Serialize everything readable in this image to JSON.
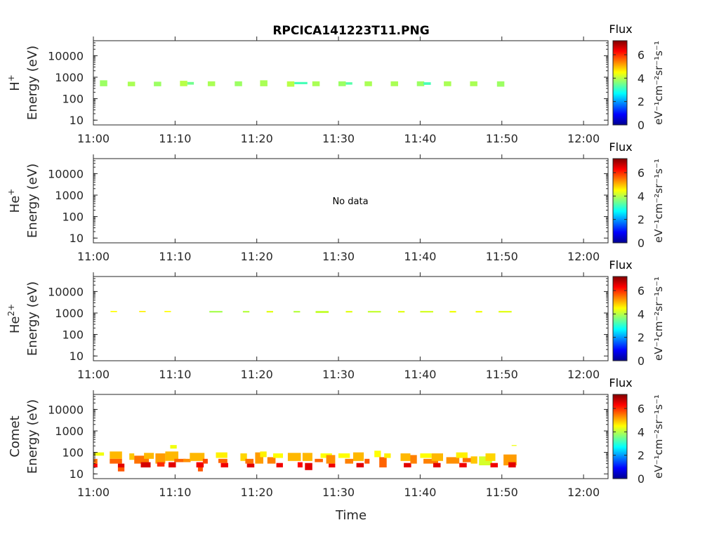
{
  "title": "RPCICA141223T11.PNG",
  "xlabel": "Time",
  "colorbar": {
    "label": "Flux",
    "unit_label": "eV⁻¹cm⁻²sr⁻¹s⁻¹",
    "ticks": [
      "0",
      "2",
      "4",
      "6"
    ],
    "range": [
      0,
      7.2
    ],
    "colormap": "jet"
  },
  "chart_data": [
    {
      "type": "heatmap",
      "species": "H",
      "species_sup": "+",
      "ylabel": "Energy (eV)",
      "y_scale": "log",
      "ylim": [
        6,
        50000
      ],
      "xlim": [
        "11:00",
        "12:03"
      ],
      "x_ticks": [
        "11:00",
        "11:10",
        "11:20",
        "11:30",
        "11:40",
        "11:50",
        "12:00"
      ],
      "y_ticks": [
        "10",
        "100",
        "1000",
        "10000"
      ],
      "note": "",
      "cells": [
        {
          "t": "11:00.8",
          "dt": 0.9,
          "e_lo": 380,
          "e_hi": 720,
          "flux": 3.8
        },
        {
          "t": "11:04.2",
          "dt": 0.9,
          "e_lo": 380,
          "e_hi": 620,
          "flux": 3.9
        },
        {
          "t": "11:07.4",
          "dt": 0.9,
          "e_lo": 380,
          "e_hi": 620,
          "flux": 3.8
        },
        {
          "t": "11:10.6",
          "dt": 0.9,
          "e_lo": 380,
          "e_hi": 680,
          "flux": 4.0
        },
        {
          "t": "11:11.5",
          "dt": 0.8,
          "e_lo": 450,
          "e_hi": 600,
          "flux": 3.5
        },
        {
          "t": "11:14.0",
          "dt": 0.9,
          "e_lo": 380,
          "e_hi": 640,
          "flux": 3.9
        },
        {
          "t": "11:17.3",
          "dt": 0.9,
          "e_lo": 380,
          "e_hi": 640,
          "flux": 3.8
        },
        {
          "t": "11:20.4",
          "dt": 0.9,
          "e_lo": 380,
          "e_hi": 720,
          "flux": 3.9
        },
        {
          "t": "11:23.7",
          "dt": 0.9,
          "e_lo": 360,
          "e_hi": 640,
          "flux": 4.0
        },
        {
          "t": "11:24.6",
          "dt": 1.6,
          "e_lo": 470,
          "e_hi": 600,
          "flux": 3.2
        },
        {
          "t": "11:26.8",
          "dt": 0.9,
          "e_lo": 380,
          "e_hi": 640,
          "flux": 3.9
        },
        {
          "t": "11:30.0",
          "dt": 0.9,
          "e_lo": 380,
          "e_hi": 640,
          "flux": 3.8
        },
        {
          "t": "11:30.9",
          "dt": 0.8,
          "e_lo": 450,
          "e_hi": 580,
          "flux": 3.3
        },
        {
          "t": "11:33.2",
          "dt": 0.9,
          "e_lo": 380,
          "e_hi": 640,
          "flux": 3.9
        },
        {
          "t": "11:36.4",
          "dt": 0.9,
          "e_lo": 380,
          "e_hi": 640,
          "flux": 3.9
        },
        {
          "t": "11:39.6",
          "dt": 0.9,
          "e_lo": 380,
          "e_hi": 640,
          "flux": 3.8
        },
        {
          "t": "11:40.4",
          "dt": 0.9,
          "e_lo": 440,
          "e_hi": 580,
          "flux": 3.2
        },
        {
          "t": "11:42.9",
          "dt": 0.9,
          "e_lo": 380,
          "e_hi": 640,
          "flux": 3.9
        },
        {
          "t": "11:46.1",
          "dt": 0.9,
          "e_lo": 380,
          "e_hi": 640,
          "flux": 3.9
        },
        {
          "t": "11:49.4",
          "dt": 0.9,
          "e_lo": 360,
          "e_hi": 640,
          "flux": 3.8
        }
      ]
    },
    {
      "type": "heatmap",
      "species": "He",
      "species_sup": "+",
      "ylabel": "Energy (eV)",
      "y_scale": "log",
      "ylim": [
        6,
        50000
      ],
      "xlim": [
        "11:00",
        "12:03"
      ],
      "x_ticks": [
        "11:00",
        "11:10",
        "11:20",
        "11:30",
        "11:40",
        "11:50",
        "12:00"
      ],
      "y_ticks": [
        "10",
        "100",
        "1000",
        "10000"
      ],
      "note": "No data",
      "cells": []
    },
    {
      "type": "heatmap",
      "species": "He",
      "species_sup": "2+",
      "ylabel": "Energy (eV)",
      "y_scale": "log",
      "ylim": [
        6,
        50000
      ],
      "xlim": [
        "11:00",
        "12:03"
      ],
      "x_ticks": [
        "11:00",
        "11:10",
        "11:20",
        "11:30",
        "11:40",
        "11:50",
        "12:00"
      ],
      "y_ticks": [
        "10",
        "100",
        "1000",
        "10000"
      ],
      "note": "",
      "cells": [
        {
          "t": "11:02.1",
          "dt": 0.8,
          "e_lo": 1100,
          "e_hi": 1250,
          "flux": 4.5
        },
        {
          "t": "11:05.6",
          "dt": 0.8,
          "e_lo": 1100,
          "e_hi": 1250,
          "flux": 4.6
        },
        {
          "t": "11:08.7",
          "dt": 0.8,
          "e_lo": 1100,
          "e_hi": 1250,
          "flux": 4.5
        },
        {
          "t": "11:14.2",
          "dt": 1.6,
          "e_lo": 1050,
          "e_hi": 1250,
          "flux": 3.9
        },
        {
          "t": "11:18.3",
          "dt": 0.8,
          "e_lo": 1050,
          "e_hi": 1250,
          "flux": 4.0
        },
        {
          "t": "11:21.2",
          "dt": 0.8,
          "e_lo": 1050,
          "e_hi": 1250,
          "flux": 4.3
        },
        {
          "t": "11:24.5",
          "dt": 0.8,
          "e_lo": 1050,
          "e_hi": 1250,
          "flux": 4.0
        },
        {
          "t": "11:27.2",
          "dt": 1.6,
          "e_lo": 1000,
          "e_hi": 1250,
          "flux": 4.1
        },
        {
          "t": "11:30.9",
          "dt": 0.8,
          "e_lo": 1050,
          "e_hi": 1250,
          "flux": 4.3
        },
        {
          "t": "11:33.6",
          "dt": 1.6,
          "e_lo": 1050,
          "e_hi": 1250,
          "flux": 4.1
        },
        {
          "t": "11:37.3",
          "dt": 0.8,
          "e_lo": 1050,
          "e_hi": 1250,
          "flux": 4.3
        },
        {
          "t": "11:40.0",
          "dt": 1.6,
          "e_lo": 1050,
          "e_hi": 1250,
          "flux": 4.2
        },
        {
          "t": "11:43.6",
          "dt": 0.8,
          "e_lo": 1050,
          "e_hi": 1250,
          "flux": 4.4
        },
        {
          "t": "11:46.8",
          "dt": 0.8,
          "e_lo": 1050,
          "e_hi": 1250,
          "flux": 4.4
        },
        {
          "t": "11:49.6",
          "dt": 1.6,
          "e_lo": 1050,
          "e_hi": 1250,
          "flux": 4.3
        }
      ]
    },
    {
      "type": "heatmap",
      "species": "Comet",
      "species_sup": "",
      "ylabel": "Energy (eV)",
      "y_scale": "log",
      "ylim": [
        6,
        50000
      ],
      "xlim": [
        "11:00",
        "12:03"
      ],
      "x_ticks": [
        "11:00",
        "11:10",
        "11:20",
        "11:30",
        "11:40",
        "11:50",
        "12:00"
      ],
      "y_ticks": [
        "10",
        "100",
        "1000",
        "10000"
      ],
      "note": "",
      "cells": [
        {
          "t": "11:00.0",
          "dt": 0.5,
          "e_lo": 20,
          "e_hi": 30,
          "flux": 6.3
        },
        {
          "t": "11:00.0",
          "dt": 0.5,
          "e_lo": 30,
          "e_hi": 50,
          "flux": 5.5
        },
        {
          "t": "11:00.0",
          "dt": 1.3,
          "e_lo": 70,
          "e_hi": 100,
          "flux": 4.4
        },
        {
          "t": "11:02.0",
          "dt": 1.5,
          "e_lo": 50,
          "e_hi": 110,
          "flux": 5.0
        },
        {
          "t": "11:02.0",
          "dt": 1.5,
          "e_lo": 30,
          "e_hi": 50,
          "flux": 5.6
        },
        {
          "t": "11:03.0",
          "dt": 0.8,
          "e_lo": 20,
          "e_hi": 30,
          "flux": 6.5
        },
        {
          "t": "11:03.0",
          "dt": 0.8,
          "e_lo": 13,
          "e_hi": 20,
          "flux": 5.7
        },
        {
          "t": "11:04.4",
          "dt": 0.6,
          "e_lo": 45,
          "e_hi": 90,
          "flux": 4.9
        },
        {
          "t": "11:05.0",
          "dt": 1.8,
          "e_lo": 30,
          "e_hi": 70,
          "flux": 5.5
        },
        {
          "t": "11:05.8",
          "dt": 1.2,
          "e_lo": 20,
          "e_hi": 35,
          "flux": 6.6
        },
        {
          "t": "11:06.2",
          "dt": 1.2,
          "e_lo": 50,
          "e_hi": 95,
          "flux": 5.0
        },
        {
          "t": "11:07.6",
          "dt": 1.2,
          "e_lo": 30,
          "e_hi": 90,
          "flux": 5.2
        },
        {
          "t": "11:07.8",
          "dt": 0.9,
          "e_lo": 22,
          "e_hi": 35,
          "flux": 6.0
        },
        {
          "t": "11:08.8",
          "dt": 1.6,
          "e_lo": 40,
          "e_hi": 110,
          "flux": 5.0
        },
        {
          "t": "11:09.2",
          "dt": 0.9,
          "e_lo": 20,
          "e_hi": 35,
          "flux": 6.5
        },
        {
          "t": "11:09.4",
          "dt": 0.8,
          "e_lo": 150,
          "e_hi": 220,
          "flux": 4.4
        },
        {
          "t": "11:09.9",
          "dt": 1.4,
          "e_lo": 35,
          "e_hi": 50,
          "flux": 5.6
        },
        {
          "t": "11:11.0",
          "dt": 0.9,
          "e_lo": 35,
          "e_hi": 50,
          "flux": 5.3
        },
        {
          "t": "11:11.8",
          "dt": 1.8,
          "e_lo": 40,
          "e_hi": 95,
          "flux": 5.0
        },
        {
          "t": "11:12.6",
          "dt": 0.9,
          "e_lo": 20,
          "e_hi": 35,
          "flux": 6.4
        },
        {
          "t": "11:12.8",
          "dt": 0.6,
          "e_lo": 13,
          "e_hi": 20,
          "flux": 5.7
        },
        {
          "t": "11:13.4",
          "dt": 0.6,
          "e_lo": 30,
          "e_hi": 50,
          "flux": 5.8
        },
        {
          "t": "11:15.0",
          "dt": 1.4,
          "e_lo": 55,
          "e_hi": 100,
          "flux": 4.6
        },
        {
          "t": "11:15.3",
          "dt": 1.1,
          "e_lo": 32,
          "e_hi": 50,
          "flux": 5.6
        },
        {
          "t": "11:15.6",
          "dt": 0.9,
          "e_lo": 20,
          "e_hi": 32,
          "flux": 6.4
        },
        {
          "t": "11:18.0",
          "dt": 0.8,
          "e_lo": 40,
          "e_hi": 90,
          "flux": 4.8
        },
        {
          "t": "11:18.6",
          "dt": 1.0,
          "e_lo": 30,
          "e_hi": 50,
          "flux": 5.5
        },
        {
          "t": "11:18.8",
          "dt": 0.9,
          "e_lo": 20,
          "e_hi": 30,
          "flux": 6.5
        },
        {
          "t": "11:19.8",
          "dt": 1.0,
          "e_lo": 30,
          "e_hi": 100,
          "flux": 5.2
        },
        {
          "t": "11:20.4",
          "dt": 0.8,
          "e_lo": 60,
          "e_hi": 110,
          "flux": 4.6
        },
        {
          "t": "11:21.3",
          "dt": 1.0,
          "e_lo": 30,
          "e_hi": 60,
          "flux": 5.4
        },
        {
          "t": "11:22.0",
          "dt": 1.2,
          "e_lo": 55,
          "e_hi": 90,
          "flux": 4.5
        },
        {
          "t": "11:22.4",
          "dt": 0.8,
          "e_lo": 20,
          "e_hi": 32,
          "flux": 6.4
        },
        {
          "t": "11:23.8",
          "dt": 1.6,
          "e_lo": 40,
          "e_hi": 95,
          "flux": 5.0
        },
        {
          "t": "11:25.0",
          "dt": 0.6,
          "e_lo": 20,
          "e_hi": 35,
          "flux": 6.3
        },
        {
          "t": "11:25.6",
          "dt": 1.2,
          "e_lo": 40,
          "e_hi": 95,
          "flux": 5.0
        },
        {
          "t": "11:25.9",
          "dt": 0.9,
          "e_lo": 15,
          "e_hi": 32,
          "flux": 6.5
        },
        {
          "t": "11:27.1",
          "dt": 1.0,
          "e_lo": 35,
          "e_hi": 50,
          "flux": 5.6
        },
        {
          "t": "11:27.8",
          "dt": 1.4,
          "e_lo": 55,
          "e_hi": 90,
          "flux": 4.5
        },
        {
          "t": "11:28.5",
          "dt": 1.1,
          "e_lo": 30,
          "e_hi": 75,
          "flux": 5.3
        },
        {
          "t": "11:28.8",
          "dt": 0.8,
          "e_lo": 20,
          "e_hi": 30,
          "flux": 6.4
        },
        {
          "t": "11:30.0",
          "dt": 1.4,
          "e_lo": 55,
          "e_hi": 90,
          "flux": 4.5
        },
        {
          "t": "11:30.8",
          "dt": 1.0,
          "e_lo": 30,
          "e_hi": 50,
          "flux": 5.4
        },
        {
          "t": "11:31.8",
          "dt": 1.3,
          "e_lo": 40,
          "e_hi": 100,
          "flux": 5.0
        },
        {
          "t": "11:32.2",
          "dt": 0.9,
          "e_lo": 20,
          "e_hi": 32,
          "flux": 6.5
        },
        {
          "t": "11:33.2",
          "dt": 0.6,
          "e_lo": 30,
          "e_hi": 50,
          "flux": 5.7
        },
        {
          "t": "11:34.4",
          "dt": 0.8,
          "e_lo": 60,
          "e_hi": 120,
          "flux": 4.5
        },
        {
          "t": "11:35.0",
          "dt": 0.9,
          "e_lo": 20,
          "e_hi": 60,
          "flux": 5.6
        },
        {
          "t": "11:35.6",
          "dt": 0.8,
          "e_lo": 55,
          "e_hi": 90,
          "flux": 4.6
        },
        {
          "t": "11:37.6",
          "dt": 1.2,
          "e_lo": 40,
          "e_hi": 90,
          "flux": 5.0
        },
        {
          "t": "11:38.0",
          "dt": 0.9,
          "e_lo": 20,
          "e_hi": 32,
          "flux": 6.5
        },
        {
          "t": "11:38.8",
          "dt": 0.8,
          "e_lo": 30,
          "e_hi": 75,
          "flux": 5.4
        },
        {
          "t": "11:40.0",
          "dt": 1.4,
          "e_lo": 55,
          "e_hi": 90,
          "flux": 4.5
        },
        {
          "t": "11:40.4",
          "dt": 1.8,
          "e_lo": 30,
          "e_hi": 50,
          "flux": 5.4
        },
        {
          "t": "11:41.6",
          "dt": 0.9,
          "e_lo": 20,
          "e_hi": 32,
          "flux": 6.5
        },
        {
          "t": "11:41.4",
          "dt": 1.4,
          "e_lo": 40,
          "e_hi": 90,
          "flux": 5.0
        },
        {
          "t": "11:43.2",
          "dt": 1.6,
          "e_lo": 30,
          "e_hi": 60,
          "flux": 5.3
        },
        {
          "t": "11:44.4",
          "dt": 1.4,
          "e_lo": 55,
          "e_hi": 100,
          "flux": 4.6
        },
        {
          "t": "11:44.8",
          "dt": 0.9,
          "e_lo": 20,
          "e_hi": 32,
          "flux": 6.4
        },
        {
          "t": "11:45.2",
          "dt": 1.0,
          "e_lo": 35,
          "e_hi": 55,
          "flux": 5.5
        },
        {
          "t": "11:46.2",
          "dt": 0.8,
          "e_lo": 30,
          "e_hi": 65,
          "flux": 4.9
        },
        {
          "t": "11:47.2",
          "dt": 1.6,
          "e_lo": 25,
          "e_hi": 65,
          "flux": 4.2
        },
        {
          "t": "11:48.0",
          "dt": 1.2,
          "e_lo": 40,
          "e_hi": 90,
          "flux": 4.8
        },
        {
          "t": "11:48.6",
          "dt": 0.9,
          "e_lo": 20,
          "e_hi": 32,
          "flux": 6.4
        },
        {
          "t": "11:50.2",
          "dt": 1.6,
          "e_lo": 25,
          "e_hi": 80,
          "flux": 5.2
        },
        {
          "t": "11:50.8",
          "dt": 0.9,
          "e_lo": 20,
          "e_hi": 35,
          "flux": 6.5
        },
        {
          "t": "11:51.2",
          "dt": 0.6,
          "e_lo": 200,
          "e_hi": 220,
          "flux": 4.4
        }
      ]
    }
  ]
}
